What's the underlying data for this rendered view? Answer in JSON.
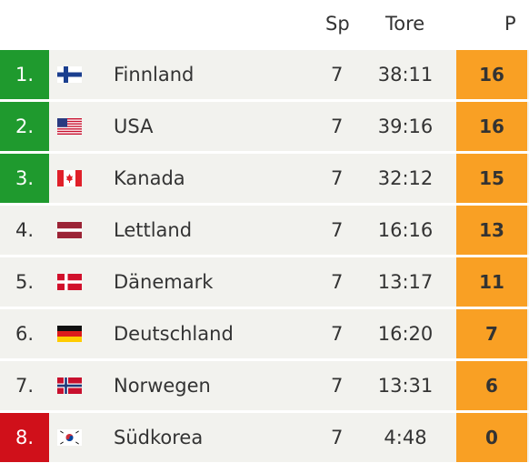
{
  "header": {
    "sp": "Sp",
    "tore": "Tore",
    "p": "P"
  },
  "rows": [
    {
      "rank": "1.",
      "flag": "finland-flag-icon",
      "team": "Finnland",
      "sp": "7",
      "tore": "38:11",
      "p": "16"
    },
    {
      "rank": "2.",
      "flag": "usa-flag-icon",
      "team": "USA",
      "sp": "7",
      "tore": "39:16",
      "p": "16"
    },
    {
      "rank": "3.",
      "flag": "canada-flag-icon",
      "team": "Kanada",
      "sp": "7",
      "tore": "32:12",
      "p": "15"
    },
    {
      "rank": "4.",
      "flag": "latvia-flag-icon",
      "team": "Lettland",
      "sp": "7",
      "tore": "16:16",
      "p": "13"
    },
    {
      "rank": "5.",
      "flag": "denmark-flag-icon",
      "team": "Dänemark",
      "sp": "7",
      "tore": "13:17",
      "p": "11"
    },
    {
      "rank": "6.",
      "flag": "germany-flag-icon",
      "team": "Deutschland",
      "sp": "7",
      "tore": "16:20",
      "p": "7"
    },
    {
      "rank": "7.",
      "flag": "norway-flag-icon",
      "team": "Norwegen",
      "sp": "7",
      "tore": "13:31",
      "p": "6"
    },
    {
      "rank": "8.",
      "flag": "south-korea-flag-icon",
      "team": "Südkorea",
      "sp": "7",
      "tore": "4:48",
      "p": "0"
    }
  ],
  "colors": {
    "qualified": "#1f9a2e",
    "relegated": "#d0101a",
    "points": "#f9a024",
    "row_bg": "#f2f2ee"
  }
}
